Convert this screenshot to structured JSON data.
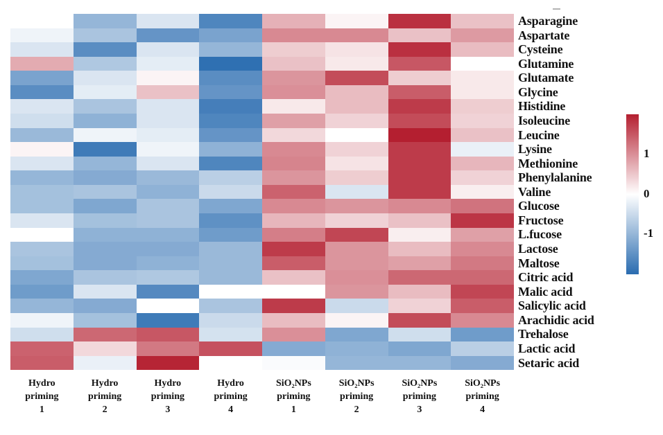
{
  "chart_data": {
    "type": "heatmap",
    "title": "",
    "xlabel": "",
    "ylabel": "",
    "grid": false,
    "legend_position": "right-colorbar",
    "columns": [
      "Hydro priming 1",
      "Hydro priming 2",
      "Hydro priming 3",
      "Hydro priming 4",
      "SiO₂NPs priming 1",
      "SiO₂NPs priming 2",
      "SiO₂NPs priming 3",
      "SiO₂NPs priming 4"
    ],
    "column_label_lines": [
      "Hydro\npriming\n1",
      "Hydro\npriming\n2",
      "Hydro\npriming\n3",
      "Hydro\npriming\n4",
      "SiO₂NPs\npriming\n1",
      "SiO₂NPs\npriming\n2",
      "SiO₂NPs\npriming\n3",
      "SiO₂NPs\npriming\n4"
    ],
    "rows": [
      "Asparagine",
      "Aspartate",
      "Cysteine",
      "Glutamine",
      "Glutamate",
      "Glycine",
      "Histidine",
      "Isoleucine",
      "Leucine",
      "Lysine",
      "Methionine",
      "Phenylalanine",
      "Valine",
      "Glucose",
      "Fructose",
      "L.fucose",
      "Lactose",
      "Maltose",
      "Citric acid",
      "Malic acid",
      "Salicylic acid",
      "Arachidic acid",
      "Trehalose",
      "Lactic acid",
      "Setaric acid"
    ],
    "values": [
      [
        0.0,
        -1.0,
        -0.35,
        -1.65,
        0.7,
        0.1,
        1.85,
        0.55
      ],
      [
        -0.15,
        -0.8,
        -1.45,
        -1.25,
        1.05,
        1.05,
        0.55,
        0.9
      ],
      [
        -0.35,
        -1.55,
        -0.35,
        -1.0,
        0.45,
        0.25,
        1.85,
        0.6
      ],
      [
        0.75,
        -0.75,
        -0.25,
        -1.95,
        0.55,
        0.2,
        1.5,
        0.0
      ],
      [
        -1.25,
        -0.35,
        0.1,
        -1.55,
        0.95,
        1.6,
        0.45,
        0.2
      ],
      [
        -1.55,
        -0.25,
        0.55,
        -1.45,
        1.0,
        0.6,
        1.45,
        0.2
      ],
      [
        -0.35,
        -0.8,
        -0.35,
        -1.75,
        0.2,
        0.6,
        1.75,
        0.45
      ],
      [
        -0.45,
        -1.05,
        -0.35,
        -1.65,
        0.85,
        0.4,
        1.6,
        0.4
      ],
      [
        -0.95,
        -0.15,
        -0.25,
        -1.45,
        0.35,
        0.0,
        2.0,
        0.55
      ],
      [
        0.1,
        -1.8,
        -0.15,
        -1.05,
        1.05,
        0.4,
        1.75,
        -0.2
      ],
      [
        -0.35,
        -1.0,
        -0.35,
        -1.65,
        1.1,
        0.25,
        1.75,
        0.65
      ],
      [
        -1.0,
        -1.15,
        -0.95,
        -0.65,
        0.95,
        0.45,
        1.75,
        0.4
      ],
      [
        -0.85,
        -0.8,
        -1.05,
        -0.5,
        1.4,
        -0.35,
        1.75,
        0.15
      ],
      [
        -0.85,
        -1.2,
        -0.8,
        -1.2,
        1.05,
        0.95,
        1.05,
        1.25
      ],
      [
        -0.35,
        -0.85,
        -0.8,
        -1.5,
        0.65,
        0.4,
        0.55,
        1.8
      ],
      [
        0.0,
        -1.05,
        -1.05,
        -1.35,
        1.15,
        1.65,
        0.15,
        0.85
      ],
      [
        -0.8,
        -1.15,
        -1.15,
        -0.95,
        1.75,
        0.95,
        0.6,
        1.05
      ],
      [
        -0.85,
        -1.15,
        -1.05,
        -0.95,
        1.45,
        0.95,
        0.85,
        1.2
      ],
      [
        -1.2,
        -0.8,
        -0.75,
        -0.95,
        0.55,
        1.0,
        1.35,
        1.35
      ],
      [
        -1.35,
        -0.35,
        -1.6,
        0.0,
        0.0,
        0.95,
        0.6,
        1.65
      ],
      [
        -1.0,
        -1.15,
        0.0,
        -0.8,
        1.75,
        -0.5,
        0.4,
        1.45
      ],
      [
        -0.15,
        -0.85,
        -1.8,
        -0.5,
        0.6,
        0.1,
        1.6,
        1.05
      ],
      [
        -0.45,
        1.35,
        1.5,
        -0.4,
        1.0,
        -1.2,
        -0.45,
        -1.35
      ],
      [
        1.4,
        0.35,
        1.2,
        1.55,
        -1.15,
        -1.05,
        -1.2,
        -0.65
      ],
      [
        1.45,
        -0.2,
        1.95,
        0.0,
        -0.05,
        -1.0,
        -1.0,
        -1.15
      ]
    ],
    "value_range": [
      -2,
      2
    ],
    "colorbar": {
      "orientation": "vertical",
      "position": "right",
      "tick_labels": [
        "1",
        "0",
        "-1"
      ],
      "tick_values": [
        1,
        0,
        -1
      ],
      "color_max": "#b41f30",
      "color_zero": "#ffffff",
      "color_min": "#2a6cb0"
    }
  }
}
